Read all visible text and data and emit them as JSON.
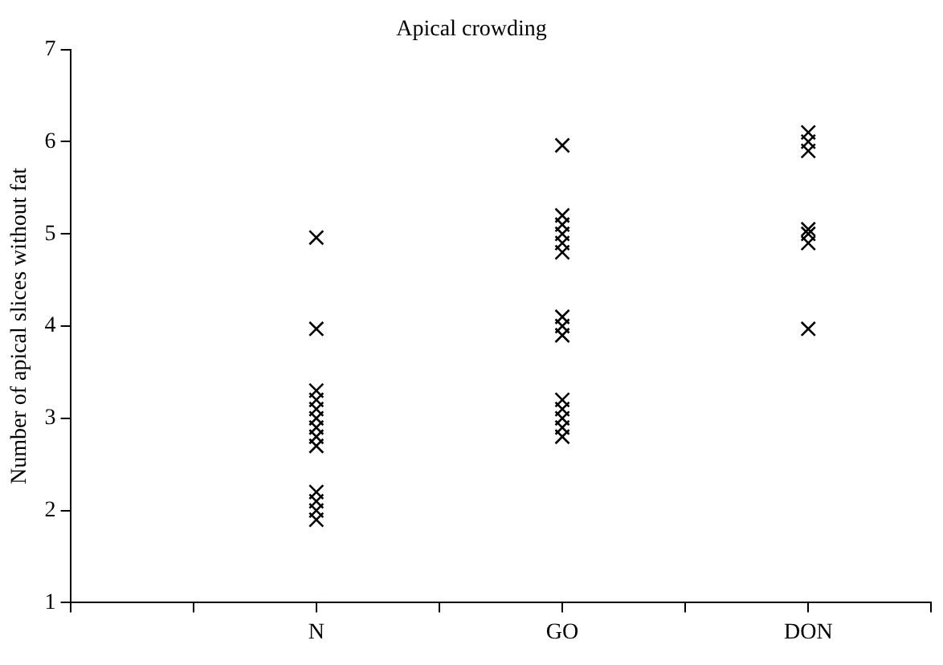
{
  "chart_data": {
    "type": "scatter",
    "title": "Apical crowding",
    "ylabel": "Number of apical slices without fat",
    "categories": [
      null,
      null,
      "N",
      null,
      "GO",
      null,
      "DON",
      null
    ],
    "series": [
      {
        "color": "#000000",
        "x": [
          "N",
          "N",
          "N",
          "N",
          "N",
          "N",
          "N",
          "N",
          "N",
          "N",
          "N",
          "N",
          "N",
          "GO",
          "GO",
          "GO",
          "GO",
          "GO",
          "GO",
          "GO",
          "GO",
          "GO",
          "GO",
          "GO",
          "GO",
          "GO",
          "GO",
          "DON",
          "DON",
          "DON",
          "DON",
          "DON",
          "DON",
          "DON"
        ],
        "values": [
          4.96,
          3.97,
          3.3,
          3.2,
          3.1,
          3.0,
          2.9,
          2.8,
          2.7,
          2.2,
          2.1,
          2.0,
          1.9,
          5.96,
          5.2,
          5.1,
          5.0,
          4.9,
          4.8,
          4.1,
          4.0,
          3.9,
          3.2,
          3.1,
          3.0,
          2.9,
          2.8,
          6.1,
          6.0,
          5.9,
          5.05,
          5.0,
          4.9,
          3.97
        ]
      }
    ],
    "ylim": [
      1,
      7
    ],
    "yticks": [
      1,
      2,
      3,
      4,
      5,
      6,
      7
    ],
    "grid": false,
    "legend": false,
    "marker": "cross"
  }
}
